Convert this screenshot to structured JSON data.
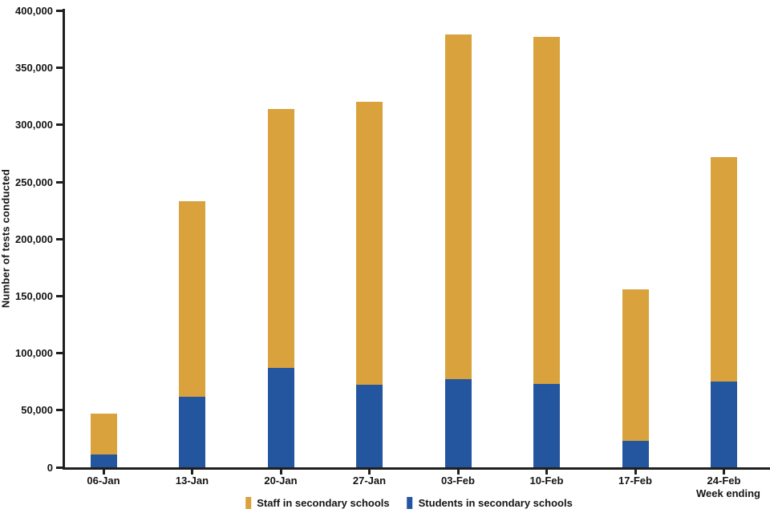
{
  "chart_data": {
    "type": "bar",
    "stacked": true,
    "title": "",
    "xlabel": "Week ending",
    "ylabel": "Number of tests conducted",
    "categories": [
      "06-Jan",
      "13-Jan",
      "20-Jan",
      "27-Jan",
      "03-Feb",
      "10-Feb",
      "17-Feb",
      "24-Feb"
    ],
    "series": [
      {
        "name": "Students in secondary schools",
        "color": "#2456A0",
        "values": [
          11000,
          62000,
          87000,
          72000,
          77000,
          73000,
          23000,
          75000
        ]
      },
      {
        "name": "Staff in secondary schools",
        "color": "#D9A23C",
        "values": [
          36000,
          171000,
          227000,
          248000,
          302000,
          304000,
          133000,
          197000
        ]
      }
    ],
    "totals": [
      47000,
      233000,
      314000,
      320000,
      379000,
      377000,
      156000,
      272000
    ],
    "ylim": [
      0,
      400000
    ],
    "ytick_interval": 50000,
    "ytick_labels": [
      "0",
      "50,000",
      "100,000",
      "150,000",
      "200,000",
      "250,000",
      "300,000",
      "350,000",
      "400,000"
    ],
    "grid": false,
    "legend_position": "bottom-center",
    "legend": [
      {
        "label": "Staff in secondary schools",
        "color": "#D9A23C"
      },
      {
        "label": "Students in secondary schools",
        "color": "#2456A0"
      }
    ]
  }
}
